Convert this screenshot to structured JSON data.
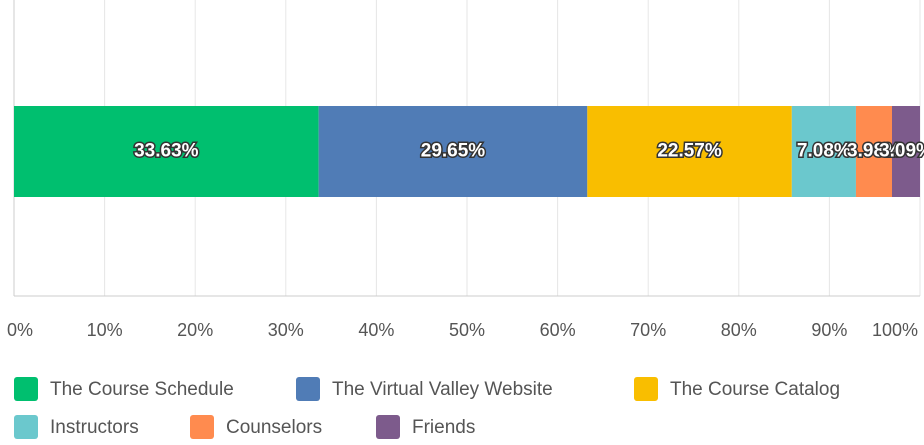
{
  "chart_data": {
    "type": "stacked-bar",
    "orientation": "horizontal",
    "categories": [
      null
    ],
    "series": [
      {
        "name": "The Course Schedule",
        "color": "#00bf6f",
        "values": [
          33.63
        ],
        "value_labels": [
          "33.63%"
        ]
      },
      {
        "name": "The Virtual Valley Website",
        "color": "#507cb6",
        "values": [
          29.65
        ],
        "value_labels": [
          "29.65%"
        ]
      },
      {
        "name": "The Course Catalog",
        "color": "#f9be00",
        "values": [
          22.57
        ],
        "value_labels": [
          "22.57%"
        ]
      },
      {
        "name": "Instructors",
        "color": "#6bc8cd",
        "values": [
          7.08
        ],
        "value_labels": [
          "7.08%"
        ]
      },
      {
        "name": "Counselors",
        "color": "#ff8b4f",
        "values": [
          3.98
        ],
        "value_labels": [
          "3.98%"
        ]
      },
      {
        "name": "Friends",
        "color": "#7d5b8c",
        "values": [
          3.09
        ],
        "value_labels": [
          "3.09%"
        ]
      }
    ],
    "xlim": [
      0,
      100
    ],
    "xticks": [
      {
        "value": 0,
        "label": "0%"
      },
      {
        "value": 10,
        "label": "10%"
      },
      {
        "value": 20,
        "label": "20%"
      },
      {
        "value": 30,
        "label": "30%"
      },
      {
        "value": 40,
        "label": "40%"
      },
      {
        "value": 50,
        "label": "50%"
      },
      {
        "value": 60,
        "label": "60%"
      },
      {
        "value": 70,
        "label": "70%"
      },
      {
        "value": 80,
        "label": "80%"
      },
      {
        "value": 90,
        "label": "90%"
      },
      {
        "value": 100,
        "label": "100%"
      }
    ],
    "grid": true,
    "legend": "bottom"
  }
}
